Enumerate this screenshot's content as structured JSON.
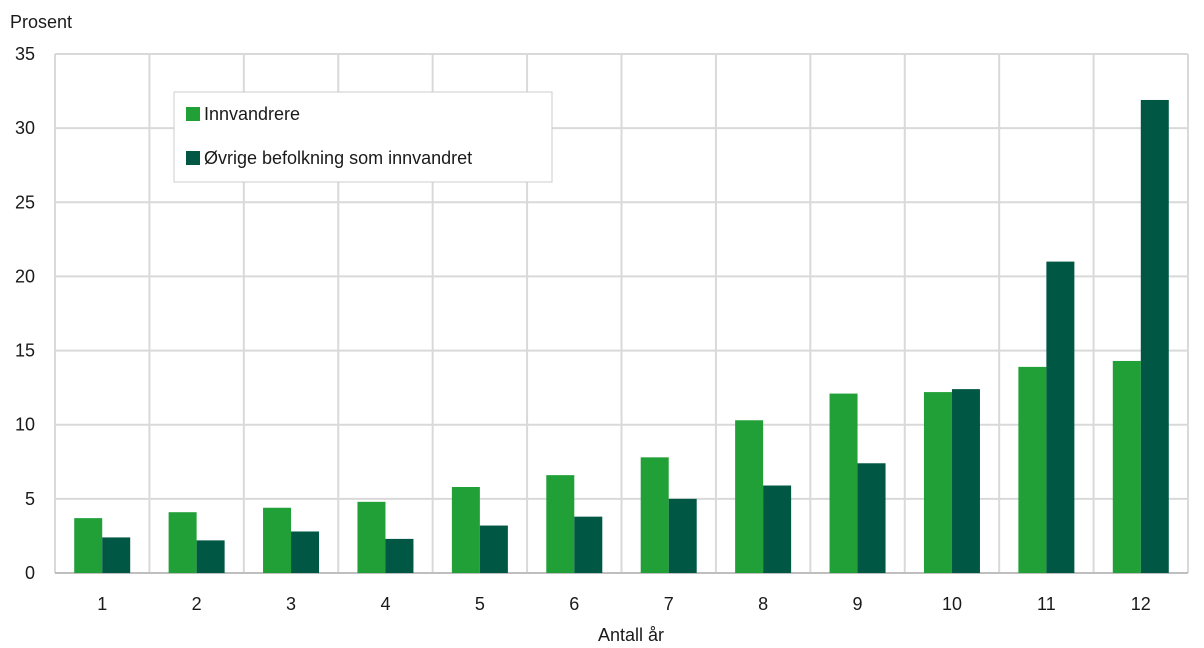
{
  "chart_data": {
    "type": "bar",
    "ylabel": "Prosent",
    "xlabel": "Antall år",
    "categories": [
      "1",
      "2",
      "3",
      "4",
      "5",
      "6",
      "7",
      "8",
      "9",
      "10",
      "11",
      "12"
    ],
    "ylim": [
      0,
      35
    ],
    "yticks": [
      "0",
      "5",
      "10",
      "15",
      "20",
      "25",
      "30",
      "35"
    ],
    "grid": true,
    "legend_position": "top-left",
    "series": [
      {
        "name": "Innvandrere",
        "color": "#21a038",
        "values": [
          3.7,
          4.1,
          4.4,
          4.8,
          5.8,
          6.6,
          7.8,
          10.3,
          12.1,
          12.2,
          13.9,
          14.3
        ]
      },
      {
        "name": "Øvrige befolkning som innvandret",
        "color": "#005844",
        "values": [
          2.4,
          2.2,
          2.8,
          2.3,
          3.2,
          3.8,
          5.0,
          5.9,
          7.4,
          12.4,
          21.0,
          31.9
        ]
      }
    ]
  }
}
